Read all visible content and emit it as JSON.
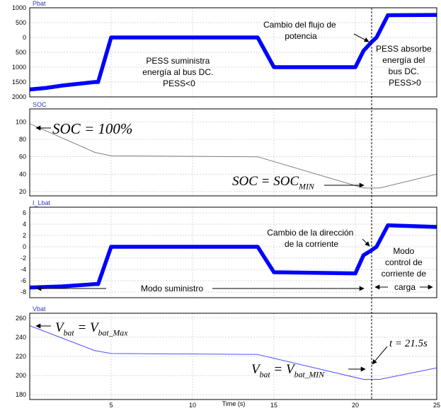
{
  "chart_data": [
    {
      "type": "line",
      "title": "Pbat",
      "xlim": [
        0,
        25
      ],
      "ylim": [
        -2000,
        1000
      ],
      "yticks": [
        1000,
        500,
        0,
        -500,
        -1000,
        -1500,
        -2000
      ],
      "ytick_labels": [
        "1000",
        "500",
        "0",
        "500",
        "1000",
        "1500",
        "2000"
      ],
      "grid": true,
      "series": [
        {
          "x": [
            0,
            1,
            2,
            3,
            4,
            4.2,
            5,
            14,
            15,
            20,
            20.5,
            21,
            21.3,
            22,
            25
          ],
          "y": [
            -1750,
            -1700,
            -1620,
            -1560,
            -1500,
            -1500,
            0,
            0,
            -1000,
            -1000,
            -450,
            -150,
            0,
            750,
            760
          ],
          "color": "#0000ff"
        }
      ],
      "annotations": [
        {
          "lines": [
            "Cambio del flujo de",
            "potencia"
          ]
        },
        {
          "lines": [
            "PESS suministra",
            "energía al bus DC.",
            "PESS<0"
          ]
        },
        {
          "lines": [
            "PESS absorbe",
            "energía del",
            "bus DC.",
            "PESS>0"
          ]
        }
      ]
    },
    {
      "type": "line",
      "title": "SOC",
      "xlim": [
        0,
        25
      ],
      "ylim": [
        15,
        115
      ],
      "yticks": [
        100,
        80,
        60,
        40,
        20
      ],
      "grid": true,
      "series": [
        {
          "x": [
            0,
            4,
            5,
            14,
            20.5,
            21.5,
            25
          ],
          "y": [
            98,
            65,
            61,
            60,
            24,
            24,
            40
          ],
          "color": "#7f7f7f"
        }
      ],
      "annotations": [
        {
          "math": "SOC = 100%"
        },
        {
          "math": "SOC = SOC_MIN"
        }
      ]
    },
    {
      "type": "line",
      "title": "I_Lbat",
      "xlim": [
        0,
        25
      ],
      "ylim": [
        -9,
        7
      ],
      "yticks": [
        6,
        4,
        2,
        0,
        -2,
        -4,
        -6,
        -8
      ],
      "grid": true,
      "series": [
        {
          "x": [
            0,
            2,
            4,
            4.2,
            5,
            14,
            15,
            20,
            20.5,
            21,
            21.3,
            22,
            25
          ],
          "y": [
            -7.2,
            -7,
            -6.6,
            -6.6,
            0,
            0,
            -4.5,
            -4.7,
            -1.5,
            -0.6,
            0,
            3.8,
            3.5
          ],
          "color": "#0000ff"
        }
      ],
      "annotations": [
        {
          "lines": [
            "Cambio de la dirección",
            "de la corriente"
          ]
        },
        {
          "lines": [
            "Modo suministro"
          ]
        },
        {
          "lines": [
            "Modo",
            "control de",
            "corriente de",
            "carga"
          ]
        }
      ]
    },
    {
      "type": "line",
      "title": "Vbat",
      "xlim": [
        0,
        25
      ],
      "ylim": [
        175,
        265
      ],
      "yticks": [
        260,
        240,
        220,
        200,
        180
      ],
      "grid": true,
      "xticks": [
        5,
        10,
        15,
        20,
        25
      ],
      "xlabel": "Time (s)",
      "series": [
        {
          "x": [
            0,
            4,
            5,
            14,
            20.5,
            21.5,
            25
          ],
          "y": [
            252,
            226,
            223,
            222,
            196,
            196,
            208
          ],
          "color": "#5050ff"
        }
      ],
      "annotations": [
        {
          "math": "V_bat = V_bat_Max"
        },
        {
          "math": "t = 21.5s"
        },
        {
          "math": "V_bat = V_bat_MIN"
        }
      ]
    }
  ],
  "event_time": 21
}
